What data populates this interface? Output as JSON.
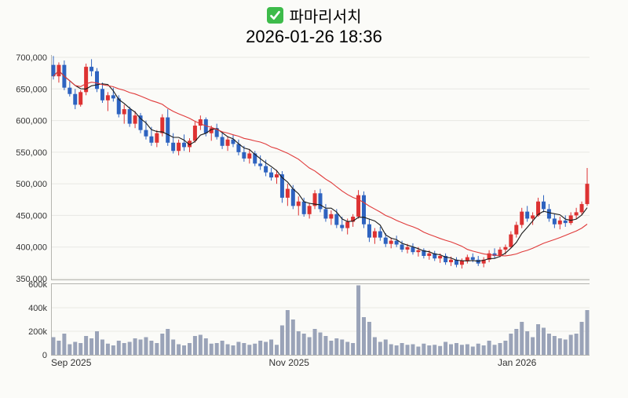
{
  "header": {
    "title": "파마리서치",
    "timestamp": "2026-01-26 18:36",
    "checkbox_color": "#3dbb4a",
    "checkbox_check_color": "#ffffff"
  },
  "chart_data": {
    "type": "candlestick",
    "title": "파마리서치",
    "subtitle": "2026-01-26 18:36",
    "scale_note": "prices in thousands of KRW, volume in thousands of shares",
    "y_axis": {
      "range": [
        350,
        700
      ],
      "ticks": [
        {
          "v": 700,
          "label": "700,000"
        },
        {
          "v": 650,
          "label": "650,000"
        },
        {
          "v": 600,
          "label": "600,000"
        },
        {
          "v": 550,
          "label": "550,000"
        },
        {
          "v": 500,
          "label": "500,000"
        },
        {
          "v": 450,
          "label": "450,000"
        },
        {
          "v": 400,
          "label": "400,000"
        },
        {
          "v": 350,
          "label": "350,000"
        }
      ]
    },
    "volume_axis": {
      "max": 600,
      "ticks": [
        {
          "v": 600,
          "label": "600k"
        },
        {
          "v": 400,
          "label": "400k"
        },
        {
          "v": 200,
          "label": "200k"
        },
        {
          "v": 0,
          "label": "0"
        }
      ]
    },
    "x_axis": {
      "ticks": [
        {
          "index": 0,
          "label": "Sep 2025"
        },
        {
          "index": 40,
          "label": "Nov 2025"
        },
        {
          "index": 82,
          "label": "Jan 2026"
        }
      ]
    },
    "series": [
      {
        "name": "price",
        "type": "candlestick"
      },
      {
        "name": "MA-short",
        "type": "line",
        "window": 5,
        "color": "#1a1a1a"
      },
      {
        "name": "MA-long",
        "type": "line",
        "window": 20,
        "color": "#e03a3a"
      }
    ],
    "colors": {
      "up": "#dd3232",
      "down": "#2e63c0",
      "volume": "#9aa3b8",
      "grid": "#e8e8e4",
      "axis_line": "#b5b5b0",
      "label": "#333333"
    },
    "candles": [
      [
        688,
        702,
        665,
        670,
        150
      ],
      [
        670,
        692,
        660,
        688,
        120
      ],
      [
        688,
        695,
        648,
        652,
        180
      ],
      [
        652,
        662,
        638,
        642,
        90
      ],
      [
        642,
        650,
        618,
        625,
        110
      ],
      [
        625,
        648,
        622,
        645,
        100
      ],
      [
        645,
        690,
        640,
        685,
        160
      ],
      [
        685,
        697,
        670,
        678,
        140
      ],
      [
        678,
        683,
        645,
        650,
        200
      ],
      [
        650,
        660,
        628,
        632,
        130
      ],
      [
        632,
        645,
        615,
        640,
        95
      ],
      [
        640,
        652,
        630,
        635,
        80
      ],
      [
        635,
        640,
        605,
        610,
        120
      ],
      [
        610,
        625,
        595,
        618,
        100
      ],
      [
        618,
        622,
        590,
        595,
        110
      ],
      [
        595,
        615,
        588,
        608,
        140
      ],
      [
        608,
        612,
        580,
        585,
        130
      ],
      [
        585,
        600,
        570,
        575,
        150
      ],
      [
        575,
        590,
        560,
        565,
        120
      ],
      [
        565,
        585,
        558,
        580,
        100
      ],
      [
        580,
        610,
        575,
        605,
        180
      ],
      [
        605,
        618,
        560,
        565,
        220
      ],
      [
        565,
        580,
        548,
        552,
        130
      ],
      [
        552,
        570,
        545,
        565,
        90
      ],
      [
        565,
        578,
        552,
        558,
        80
      ],
      [
        558,
        572,
        550,
        568,
        100
      ],
      [
        568,
        598,
        565,
        592,
        160
      ],
      [
        592,
        608,
        585,
        602,
        170
      ],
      [
        602,
        605,
        575,
        580,
        140
      ],
      [
        580,
        592,
        568,
        588,
        95
      ],
      [
        588,
        595,
        570,
        574,
        100
      ],
      [
        574,
        580,
        555,
        560,
        120
      ],
      [
        560,
        575,
        552,
        570,
        90
      ],
      [
        570,
        578,
        558,
        563,
        80
      ],
      [
        563,
        570,
        545,
        550,
        110
      ],
      [
        550,
        560,
        535,
        540,
        100
      ],
      [
        540,
        555,
        532,
        548,
        85
      ],
      [
        548,
        552,
        528,
        532,
        95
      ],
      [
        532,
        545,
        522,
        528,
        120
      ],
      [
        528,
        538,
        512,
        518,
        110
      ],
      [
        518,
        525,
        505,
        510,
        130
      ],
      [
        510,
        522,
        500,
        515,
        85
      ],
      [
        515,
        520,
        470,
        478,
        250
      ],
      [
        478,
        500,
        465,
        492,
        380
      ],
      [
        492,
        498,
        460,
        465,
        300
      ],
      [
        465,
        480,
        450,
        472,
        200
      ],
      [
        472,
        478,
        448,
        452,
        180
      ],
      [
        452,
        470,
        445,
        465,
        150
      ],
      [
        465,
        490,
        460,
        485,
        220
      ],
      [
        485,
        492,
        455,
        460,
        190
      ],
      [
        460,
        468,
        440,
        445,
        160
      ],
      [
        445,
        458,
        435,
        452,
        120
      ],
      [
        452,
        460,
        430,
        435,
        140
      ],
      [
        435,
        448,
        425,
        430,
        130
      ],
      [
        430,
        445,
        420,
        440,
        110
      ],
      [
        440,
        452,
        432,
        448,
        100
      ],
      [
        448,
        490,
        445,
        482,
        590
      ],
      [
        482,
        488,
        430,
        436,
        320
      ],
      [
        436,
        445,
        408,
        415,
        280
      ],
      [
        415,
        430,
        405,
        425,
        150
      ],
      [
        425,
        432,
        410,
        415,
        110
      ],
      [
        415,
        422,
        400,
        405,
        130
      ],
      [
        405,
        415,
        398,
        410,
        90
      ],
      [
        410,
        418,
        400,
        404,
        80
      ],
      [
        404,
        410,
        392,
        396,
        100
      ],
      [
        396,
        405,
        390,
        400,
        85
      ],
      [
        400,
        406,
        388,
        392,
        90
      ],
      [
        392,
        400,
        385,
        395,
        70
      ],
      [
        395,
        398,
        382,
        386,
        95
      ],
      [
        386,
        395,
        380,
        390,
        80
      ],
      [
        390,
        394,
        378,
        382,
        85
      ],
      [
        382,
        390,
        375,
        386,
        75
      ],
      [
        386,
        390,
        372,
        376,
        110
      ],
      [
        376,
        385,
        370,
        380,
        90
      ],
      [
        380,
        384,
        368,
        372,
        100
      ],
      [
        372,
        382,
        366,
        378,
        85
      ],
      [
        378,
        388,
        374,
        384,
        90
      ],
      [
        384,
        390,
        376,
        380,
        70
      ],
      [
        380,
        386,
        370,
        374,
        95
      ],
      [
        374,
        384,
        368,
        380,
        80
      ],
      [
        380,
        395,
        376,
        390,
        120
      ],
      [
        390,
        398,
        382,
        386,
        85
      ],
      [
        386,
        400,
        384,
        396,
        100
      ],
      [
        396,
        404,
        388,
        400,
        120
      ],
      [
        400,
        425,
        398,
        420,
        180
      ],
      [
        420,
        440,
        415,
        435,
        220
      ],
      [
        435,
        462,
        430,
        456,
        280
      ],
      [
        456,
        465,
        440,
        445,
        200
      ],
      [
        445,
        455,
        435,
        450,
        150
      ],
      [
        450,
        478,
        448,
        472,
        260
      ],
      [
        472,
        482,
        455,
        460,
        230
      ],
      [
        460,
        468,
        440,
        445,
        180
      ],
      [
        445,
        452,
        430,
        436,
        160
      ],
      [
        436,
        448,
        428,
        442,
        140
      ],
      [
        442,
        450,
        432,
        438,
        130
      ],
      [
        438,
        455,
        435,
        450,
        170
      ],
      [
        450,
        462,
        444,
        455,
        180
      ],
      [
        455,
        472,
        450,
        468,
        280
      ],
      [
        468,
        525,
        465,
        500,
        380
      ]
    ]
  }
}
